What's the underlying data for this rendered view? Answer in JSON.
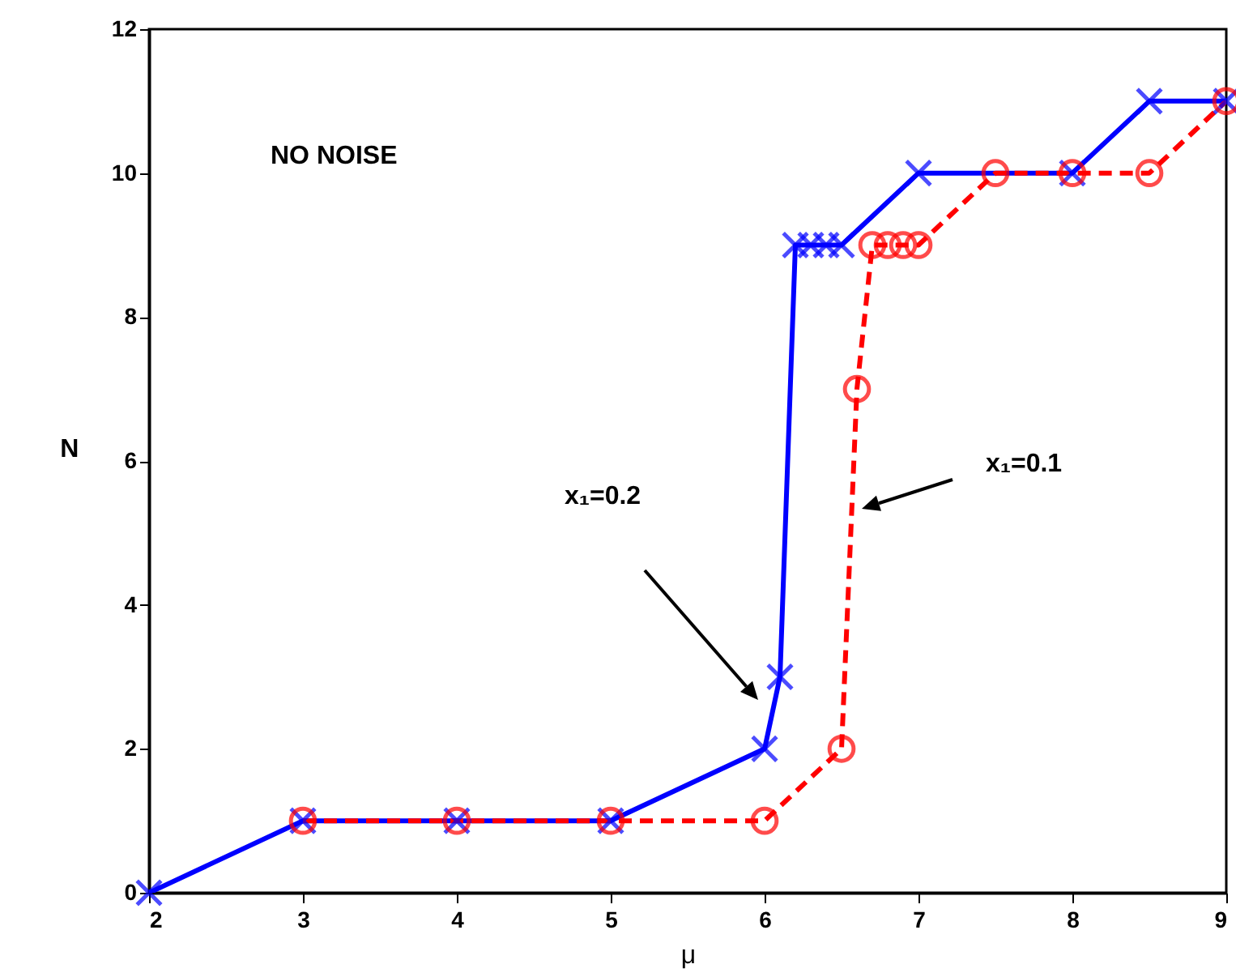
{
  "chart_data": {
    "type": "line",
    "xlabel": "μ",
    "ylabel": "N",
    "xlim": [
      2,
      9
    ],
    "xticks": [
      2,
      3,
      4,
      5,
      6,
      7,
      8,
      9
    ],
    "ylim": [
      0,
      12
    ],
    "yticks": [
      0,
      2,
      4,
      6,
      8,
      10,
      12
    ],
    "grid": false,
    "series": [
      {
        "color": "#0000ff",
        "marker": "cross",
        "line_style": "solid",
        "x": [
          2,
          3,
          4,
          5,
          6,
          6.1,
          6.2,
          6.3,
          6.4,
          6.5,
          7,
          8,
          8.5,
          9
        ],
        "values": [
          0,
          1,
          1,
          1,
          2,
          3,
          9,
          9,
          9,
          9,
          10,
          10,
          11,
          11
        ]
      },
      {
        "color": "#ff0000",
        "marker": "circle",
        "line_style": "dashed",
        "x": [
          3,
          4,
          5,
          6,
          6.5,
          6.6,
          6.7,
          6.8,
          6.9,
          7,
          7.5,
          8,
          8.5,
          9
        ],
        "values": [
          1,
          1,
          1,
          1,
          2,
          7,
          9,
          9,
          9,
          9,
          10,
          10,
          10,
          11
        ]
      }
    ],
    "annotations": [
      "NO NOISE",
      "x₁=0.2",
      "x₁=0.1"
    ]
  }
}
